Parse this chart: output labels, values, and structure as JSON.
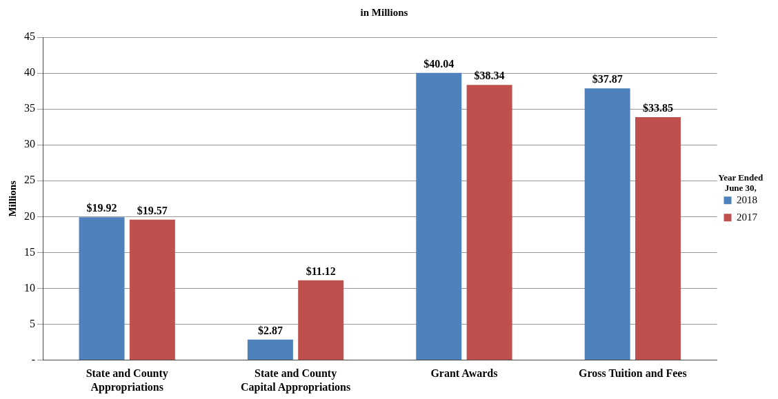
{
  "chart_data": {
    "type": "bar",
    "title": "in Millions",
    "ylabel": "Millions",
    "legend_title": "Year Ended June 30,",
    "categories": [
      "State and County Appropriations",
      "State and County Capital Appropriations",
      "Grant Awards",
      "Gross Tuition and Fees"
    ],
    "series": [
      {
        "name": "2018",
        "color": "#4f81bd",
        "values": [
          19.92,
          2.87,
          40.04,
          37.87
        ],
        "value_labels": [
          "$19.92",
          "$2.87",
          "$40.04",
          "$37.87"
        ]
      },
      {
        "name": "2017",
        "color": "#c0504d",
        "values": [
          19.57,
          11.12,
          38.34,
          33.85
        ],
        "value_labels": [
          "$19.57",
          "$11.12",
          "$38.34",
          "$33.85"
        ]
      }
    ],
    "ylim": [
      0,
      45
    ],
    "yticks": [
      {
        "value": 0,
        "label": "-"
      },
      5,
      10,
      15,
      20,
      25,
      30,
      35,
      40,
      45
    ],
    "grid": "y",
    "legend": "right"
  }
}
